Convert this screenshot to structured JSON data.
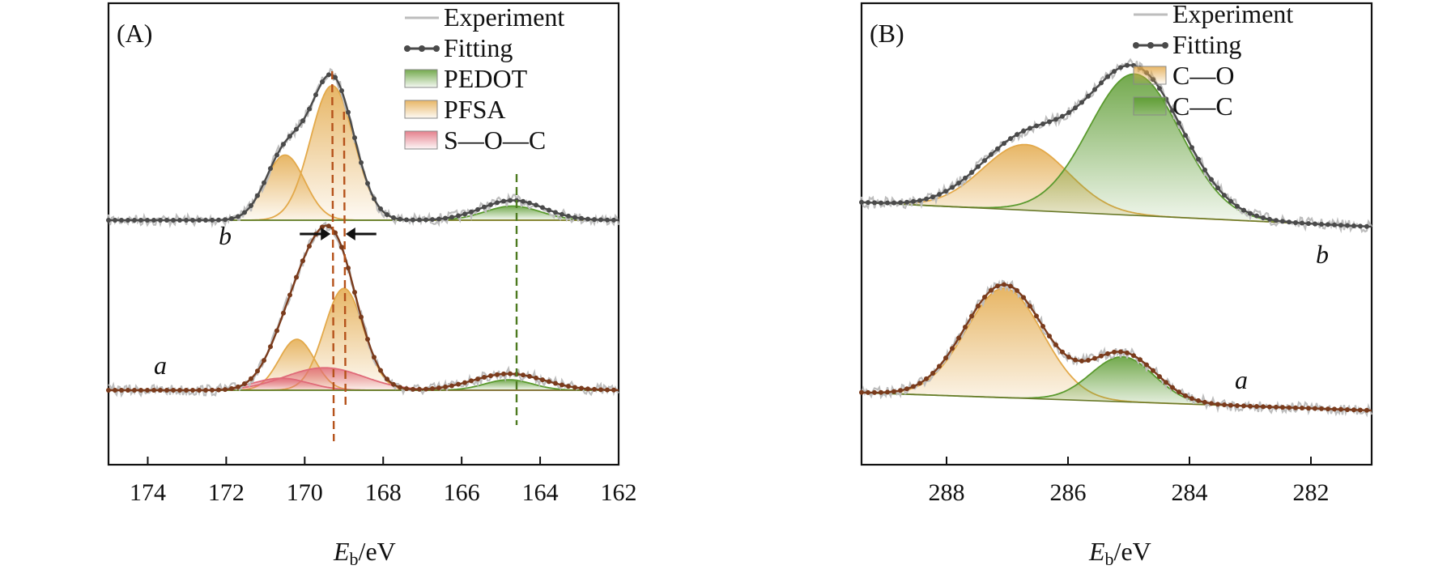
{
  "chart_data": [
    {
      "type": "line",
      "panel_label": "(A)",
      "xlabel": {
        "main": "E",
        "sub": "b",
        "unit": "/eV"
      },
      "xlim": [
        175,
        162
      ],
      "xticks": [
        174,
        172,
        170,
        168,
        166,
        164,
        162
      ],
      "legend": {
        "placement": "top-right",
        "entries": [
          {
            "label": "Experiment",
            "kind": "line",
            "color": "#bdbdbd"
          },
          {
            "label": "Fitting",
            "kind": "dotline",
            "color": "#4a4a4a"
          },
          {
            "label": "PEDOT",
            "kind": "patch",
            "color": "#5a9a2e"
          },
          {
            "label": "PFSA",
            "kind": "patch",
            "color": "#e3a94a"
          },
          {
            "label": "S—O—C",
            "kind": "patch",
            "color": "#e06a78"
          }
        ]
      },
      "annotations": {
        "dashed_lines_eV": [
          169.3,
          169.0,
          164.6
        ],
        "dashed_colors": [
          "#b5521b",
          "#b5521b",
          "#4d7a1f"
        ],
        "shift_arrows_eV": [
          169.3,
          169.0
        ]
      },
      "curves": [
        {
          "name": "b",
          "fitting_color": "#4a4a4a",
          "fitting_peaks": [
            {
              "center": 169.3,
              "height": 1.0,
              "width": 0.55
            },
            {
              "center": 170.5,
              "height": 0.46,
              "width": 0.5
            },
            {
              "center": 164.7,
              "height": 0.14,
              "width": 0.8
            }
          ],
          "components": [
            {
              "component": "PFSA",
              "center": 169.3,
              "height": 0.95,
              "width": 0.55
            },
            {
              "component": "PFSA",
              "center": 170.5,
              "height": 0.46,
              "width": 0.5
            },
            {
              "component": "PEDOT",
              "center": 164.7,
              "height": 0.1,
              "width": 0.7
            }
          ]
        },
        {
          "name": "a",
          "fitting_color": "#7a3b1c",
          "fitting_peaks": [
            {
              "center": 169.25,
              "height": 0.92,
              "width": 0.6
            },
            {
              "center": 170.2,
              "height": 0.5,
              "width": 0.6
            },
            {
              "center": 164.8,
              "height": 0.11,
              "width": 0.9
            }
          ],
          "components": [
            {
              "component": "PFSA",
              "center": 169.0,
              "height": 0.68,
              "width": 0.5
            },
            {
              "component": "PFSA",
              "center": 170.2,
              "height": 0.34,
              "width": 0.45
            },
            {
              "component": "S—O—C",
              "center": 169.5,
              "height": 0.15,
              "width": 1.0
            },
            {
              "component": "S—O—C",
              "center": 170.6,
              "height": 0.08,
              "width": 0.7
            },
            {
              "component": "PEDOT",
              "center": 164.8,
              "height": 0.07,
              "width": 0.6
            }
          ]
        }
      ]
    },
    {
      "type": "line",
      "panel_label": "(B)",
      "xlabel": {
        "main": "E",
        "sub": "b",
        "unit": "/eV"
      },
      "xlim": [
        289.4,
        281
      ],
      "xticks": [
        288,
        286,
        284,
        282
      ],
      "legend": {
        "placement": "top-right",
        "entries": [
          {
            "label": "Experiment",
            "kind": "line",
            "color": "#bdbdbd"
          },
          {
            "label": "Fitting",
            "kind": "dotline",
            "color": "#4a4a4a"
          },
          {
            "label": "C—O",
            "kind": "patch",
            "color": "#e3a94a"
          },
          {
            "label": "C—C",
            "kind": "patch",
            "color": "#5a9a2e"
          }
        ]
      },
      "curves": [
        {
          "name": "b",
          "fitting_color": "#4a4a4a",
          "fitting_peaks": [
            {
              "center": 284.9,
              "height": 1.0,
              "width": 0.78
            },
            {
              "center": 286.7,
              "height": 0.48,
              "width": 0.75
            }
          ],
          "components": [
            {
              "component": "C—O",
              "center": 286.7,
              "height": 0.45,
              "width": 0.7
            },
            {
              "component": "C—C",
              "center": 284.9,
              "height": 0.97,
              "width": 0.75
            }
          ]
        },
        {
          "name": "a",
          "fitting_color": "#7a3b1c",
          "fitting_peaks": [
            {
              "center": 287.05,
              "height": 0.93,
              "width": 0.65
            },
            {
              "center": 285.1,
              "height": 0.4,
              "width": 0.55
            }
          ],
          "components": [
            {
              "component": "C—O",
              "center": 287.05,
              "height": 0.9,
              "width": 0.63
            },
            {
              "component": "C—C",
              "center": 285.1,
              "height": 0.37,
              "width": 0.52
            }
          ]
        }
      ]
    }
  ]
}
